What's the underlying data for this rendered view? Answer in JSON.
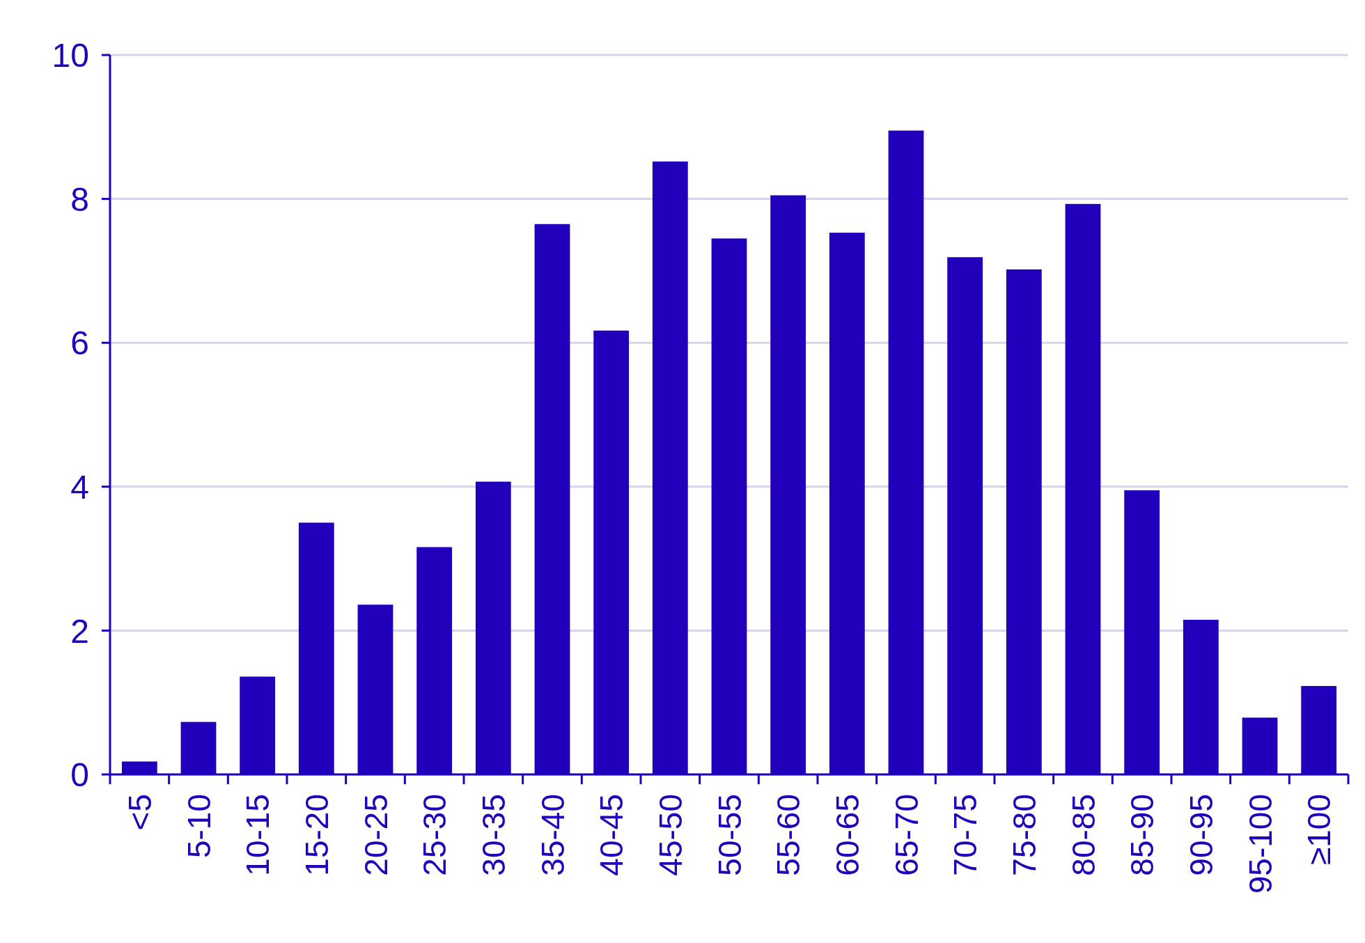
{
  "chart_data": {
    "type": "bar",
    "categories": [
      "<5",
      "5-10",
      "10-15",
      "15-20",
      "20-25",
      "25-30",
      "30-35",
      "35-40",
      "40-45",
      "45-50",
      "50-55",
      "55-60",
      "60-65",
      "65-70",
      "70-75",
      "75-80",
      "80-85",
      "85-90",
      "90-95",
      "95-100",
      "≥100"
    ],
    "values": [
      0.18,
      0.73,
      1.36,
      3.5,
      2.36,
      3.16,
      4.07,
      7.65,
      6.17,
      8.52,
      7.45,
      8.05,
      7.53,
      8.95,
      7.19,
      7.02,
      7.93,
      3.95,
      2.15,
      0.79,
      1.23
    ],
    "color": "#2200bb",
    "ylim": [
      0,
      10
    ],
    "yticks": [
      0,
      2,
      4,
      6,
      8,
      10
    ],
    "grid": "y"
  }
}
